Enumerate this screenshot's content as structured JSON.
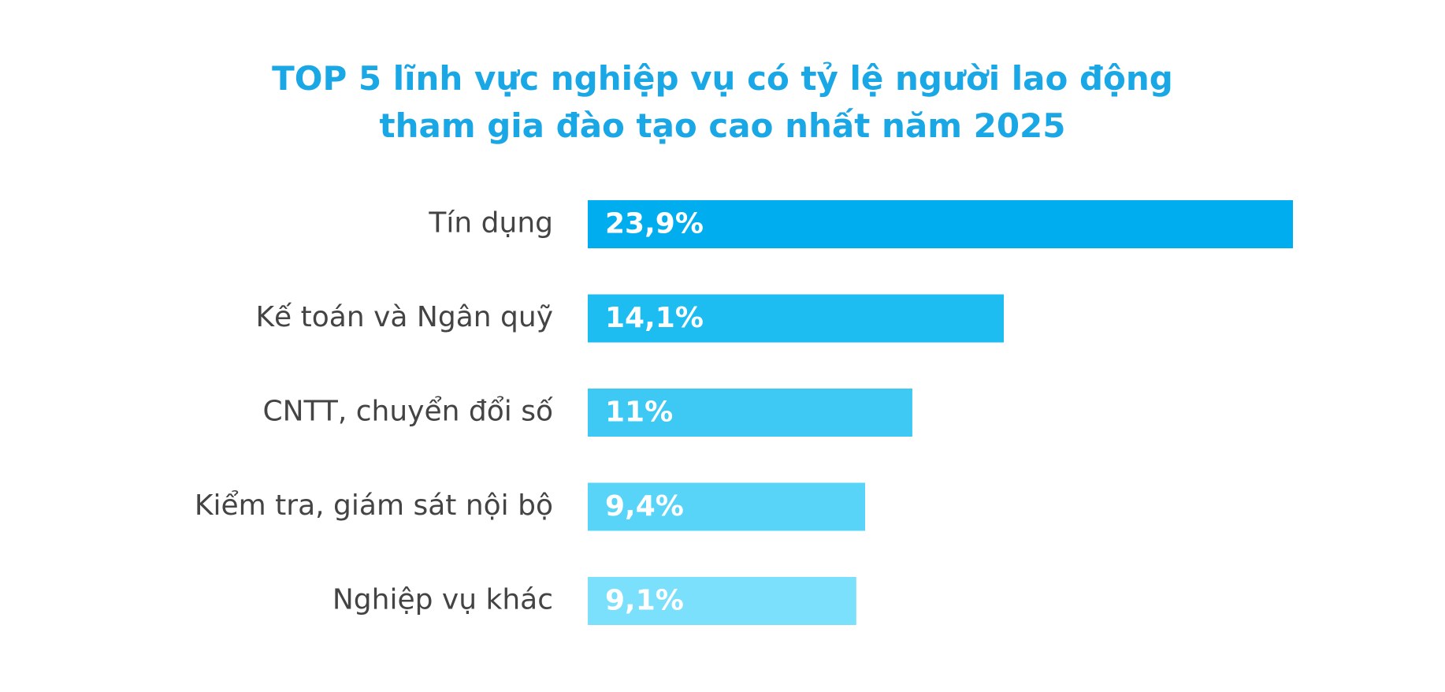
{
  "chart_data": {
    "type": "hbar",
    "title": "TOP 5 lĩnh vực nghiệp vụ có tỷ lệ người lao động\ntham gia đào tạo cao nhất năm 2025",
    "categories": [
      "Tín dụng",
      "Kế toán và Ngân quỹ",
      "CNTT, chuyển đổi số",
      "Kiểm tra, giám sát nội bộ",
      "Nghiệp vụ khác"
    ],
    "values": [
      23.9,
      14.1,
      11,
      9.4,
      9.1
    ],
    "value_labels": [
      "23,9%",
      "14,1%",
      "11%",
      "9,4%",
      "9,1%"
    ],
    "colors": [
      "#00aeef",
      "#1dbcf1",
      "#3ec8f4",
      "#58d4f8",
      "#7be0fc"
    ]
  }
}
